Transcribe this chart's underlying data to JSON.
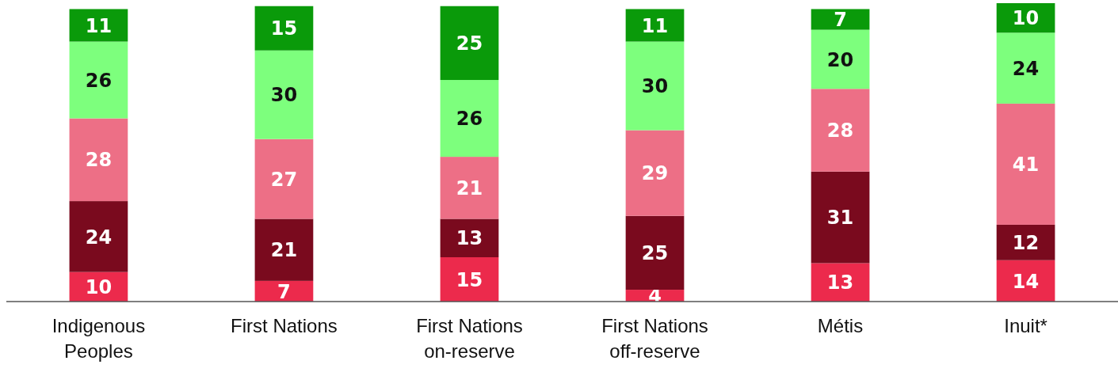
{
  "chart_data": {
    "type": "bar",
    "stacked": true,
    "data_labels": true,
    "categories": [
      "Indigenous Peoples",
      "First Nations",
      "First Nations on-reserve",
      "First Nations off-reserve",
      "Métis",
      "Inuit*"
    ],
    "series": [
      {
        "color": "#ec2a4c",
        "values": [
          10,
          7,
          15,
          4,
          13,
          14
        ]
      },
      {
        "color": "#7a0a1e",
        "values": [
          24,
          21,
          13,
          25,
          31,
          12
        ]
      },
      {
        "color": "#ed6f86",
        "values": [
          28,
          27,
          21,
          29,
          28,
          41
        ]
      },
      {
        "color": "#7dff7d",
        "values": [
          26,
          30,
          26,
          30,
          20,
          24
        ]
      },
      {
        "color": "#0a9a0a",
        "values": [
          11,
          15,
          25,
          11,
          7,
          10
        ]
      }
    ]
  }
}
